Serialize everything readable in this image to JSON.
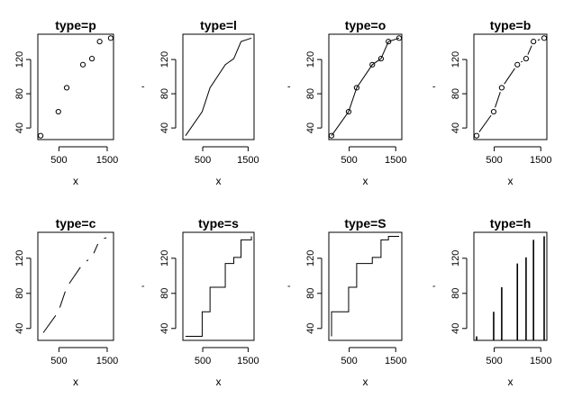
{
  "chart_data": [
    {
      "type": "scatter",
      "title": "type=p",
      "plot_type_code": "p",
      "xlabel": "x",
      "ylabel": "'",
      "x": [
        121,
        488,
        661,
        997,
        1184,
        1344,
        1573
      ],
      "y": [
        31,
        59,
        87,
        114,
        121,
        141,
        145
      ],
      "xlim": [
        121,
        1573
      ],
      "ylim": [
        31,
        145
      ],
      "xticks": [
        "500",
        "1500"
      ],
      "yticks": [
        "40",
        "80",
        "120"
      ],
      "xtick_values": [
        500,
        1500
      ],
      "ytick_values": [
        40,
        80,
        120
      ]
    },
    {
      "type": "line",
      "title": "type=l",
      "plot_type_code": "l",
      "xlabel": "x",
      "ylabel": "'",
      "x": [
        121,
        488,
        661,
        997,
        1184,
        1344,
        1573
      ],
      "y": [
        31,
        59,
        87,
        114,
        121,
        141,
        145
      ],
      "xlim": [
        121,
        1573
      ],
      "ylim": [
        31,
        145
      ],
      "xticks": [
        "500",
        "1500"
      ],
      "yticks": [
        "40",
        "80",
        "120"
      ],
      "xtick_values": [
        500,
        1500
      ],
      "ytick_values": [
        40,
        80,
        120
      ]
    },
    {
      "type": "line",
      "title": "type=o",
      "plot_type_code": "o",
      "xlabel": "x",
      "ylabel": "'",
      "x": [
        121,
        488,
        661,
        997,
        1184,
        1344,
        1573
      ],
      "y": [
        31,
        59,
        87,
        114,
        121,
        141,
        145
      ],
      "xlim": [
        121,
        1573
      ],
      "ylim": [
        31,
        145
      ],
      "xticks": [
        "500",
        "1500"
      ],
      "yticks": [
        "40",
        "80",
        "120"
      ],
      "xtick_values": [
        500,
        1500
      ],
      "ytick_values": [
        40,
        80,
        120
      ]
    },
    {
      "type": "line",
      "title": "type=b",
      "plot_type_code": "b",
      "xlabel": "x",
      "ylabel": "'",
      "x": [
        121,
        488,
        661,
        997,
        1184,
        1344,
        1573
      ],
      "y": [
        31,
        59,
        87,
        114,
        121,
        141,
        145
      ],
      "xlim": [
        121,
        1573
      ],
      "ylim": [
        31,
        145
      ],
      "xticks": [
        "500",
        "1500"
      ],
      "yticks": [
        "40",
        "80",
        "120"
      ],
      "xtick_values": [
        500,
        1500
      ],
      "ytick_values": [
        40,
        80,
        120
      ]
    },
    {
      "type": "line",
      "title": "type=c",
      "plot_type_code": "c",
      "xlabel": "x",
      "ylabel": "'",
      "x": [
        121,
        488,
        661,
        997,
        1184,
        1344,
        1573
      ],
      "y": [
        31,
        59,
        87,
        114,
        121,
        141,
        145
      ],
      "xlim": [
        121,
        1573
      ],
      "ylim": [
        31,
        145
      ],
      "xticks": [
        "500",
        "1500"
      ],
      "yticks": [
        "40",
        "80",
        "120"
      ],
      "xtick_values": [
        500,
        1500
      ],
      "ytick_values": [
        40,
        80,
        120
      ]
    },
    {
      "type": "line",
      "title": "type=s",
      "plot_type_code": "s",
      "xlabel": "x",
      "ylabel": "'",
      "x": [
        121,
        488,
        661,
        997,
        1184,
        1344,
        1573
      ],
      "y": [
        31,
        59,
        87,
        114,
        121,
        141,
        145
      ],
      "xlim": [
        121,
        1573
      ],
      "ylim": [
        31,
        145
      ],
      "xticks": [
        "500",
        "1500"
      ],
      "yticks": [
        "40",
        "80",
        "120"
      ],
      "xtick_values": [
        500,
        1500
      ],
      "ytick_values": [
        40,
        80,
        120
      ]
    },
    {
      "type": "line",
      "title": "type=S",
      "plot_type_code": "S",
      "xlabel": "x",
      "ylabel": "'",
      "x": [
        121,
        488,
        661,
        997,
        1184,
        1344,
        1573
      ],
      "y": [
        31,
        59,
        87,
        114,
        121,
        141,
        145
      ],
      "xlim": [
        121,
        1573
      ],
      "ylim": [
        31,
        145
      ],
      "xticks": [
        "500",
        "1500"
      ],
      "yticks": [
        "40",
        "80",
        "120"
      ],
      "xtick_values": [
        500,
        1500
      ],
      "ytick_values": [
        40,
        80,
        120
      ]
    },
    {
      "type": "bar",
      "title": "type=h",
      "plot_type_code": "h",
      "xlabel": "x",
      "ylabel": "'",
      "x": [
        121,
        488,
        661,
        997,
        1184,
        1344,
        1573
      ],
      "y": [
        31,
        59,
        87,
        114,
        121,
        141,
        145
      ],
      "xlim": [
        121,
        1573
      ],
      "ylim": [
        31,
        145
      ],
      "xticks": [
        "500",
        "1500"
      ],
      "yticks": [
        "40",
        "80",
        "120"
      ],
      "xtick_values": [
        500,
        1500
      ],
      "ytick_values": [
        40,
        80,
        120
      ]
    }
  ]
}
